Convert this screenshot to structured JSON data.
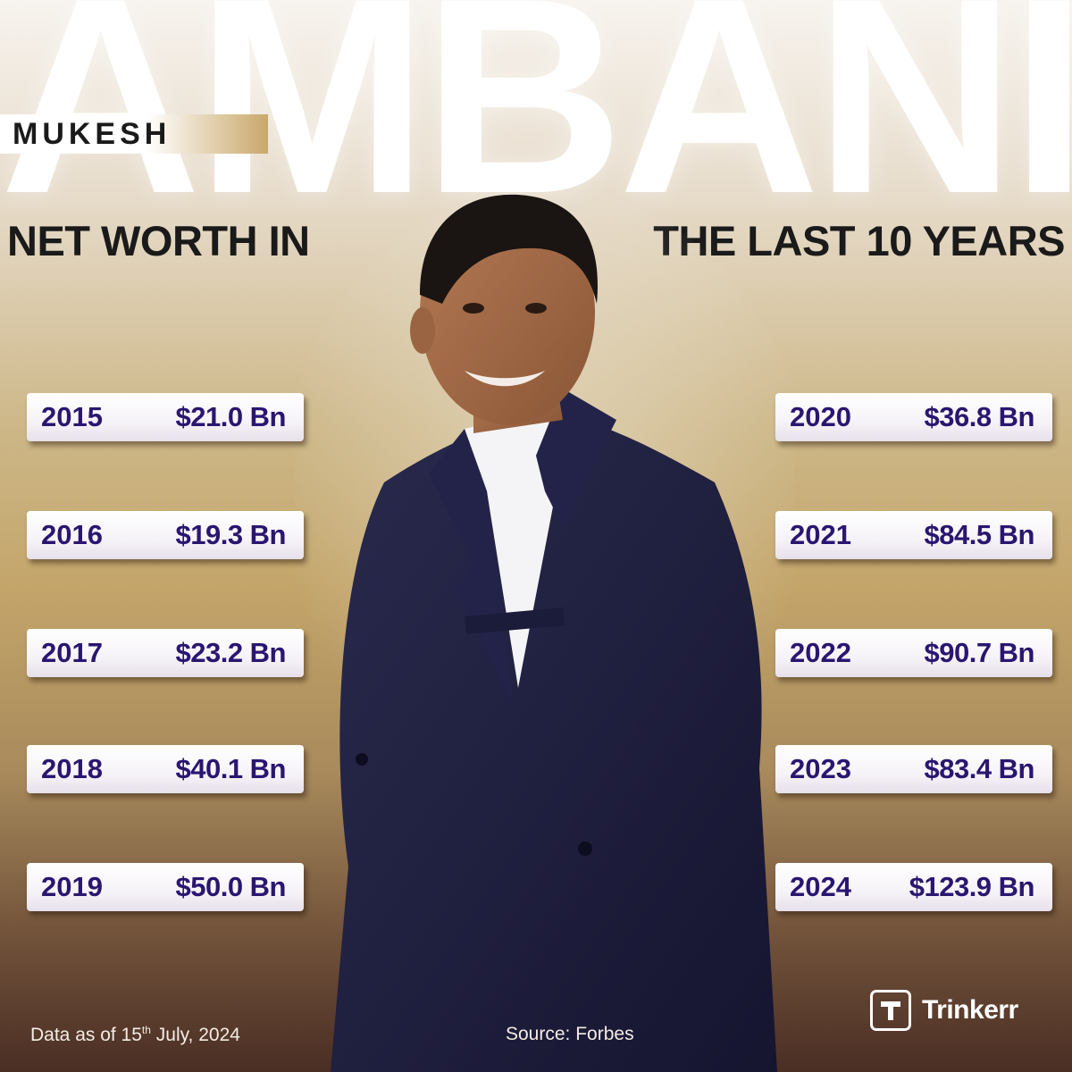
{
  "header": {
    "big_title": "AMBANI",
    "name_tag": "MUKESH",
    "subtitle_left": "NET WORTH IN",
    "subtitle_right": "THE LAST 10 YEARS"
  },
  "entries_left": [
    {
      "year": "2015",
      "amount": "$21.0 Bn"
    },
    {
      "year": "2016",
      "amount": "$19.3 Bn"
    },
    {
      "year": "2017",
      "amount": "$23.2 Bn"
    },
    {
      "year": "2018",
      "amount": "$40.1 Bn"
    },
    {
      "year": "2019",
      "amount": "$50.0 Bn"
    }
  ],
  "entries_right": [
    {
      "year": "2020",
      "amount": "$36.8 Bn"
    },
    {
      "year": "2021",
      "amount": "$84.5 Bn"
    },
    {
      "year": "2022",
      "amount": "$90.7 Bn"
    },
    {
      "year": "2023",
      "amount": "$83.4 Bn"
    },
    {
      "year": "2024",
      "amount": "$123.9 Bn"
    }
  ],
  "footer": {
    "note_prefix": "Data as of 15",
    "note_sup": "th",
    "note_suffix": " July, 2024",
    "source": "Source: Forbes"
  },
  "brand": {
    "name": "Trinkerr",
    "icon": "trinkerr-logo-icon"
  },
  "colors": {
    "pill_text": "#2a1670",
    "title": "#ffffff",
    "suit": "#1c1c3a"
  }
}
